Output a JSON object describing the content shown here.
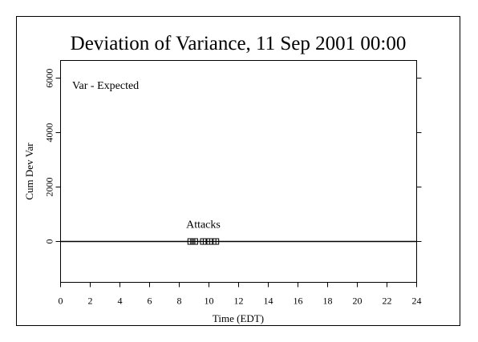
{
  "chart_data": {
    "type": "line",
    "title": "Deviation of Variance, 11 Sep 2001 00:00",
    "x_label": "Time (EDT)",
    "y_label": "Cum Dev Var",
    "legend": {
      "text": "Var - Expected",
      "color": "#cc0000"
    },
    "xlim": [
      0,
      24
    ],
    "xticks": [
      0,
      2,
      4,
      6,
      8,
      10,
      12,
      14,
      16,
      18,
      20,
      22,
      24
    ],
    "ylim": [
      -1500,
      6650
    ],
    "yticks": [
      0,
      2000,
      4000,
      6000
    ],
    "zero_line": {
      "value": 0,
      "color": "#000000"
    },
    "annotation": {
      "text": "Attacks",
      "x": [
        8.77,
        9.05,
        9.62,
        10.05,
        10.47
      ],
      "values": [
        0,
        0,
        0,
        0,
        0
      ]
    }
  }
}
